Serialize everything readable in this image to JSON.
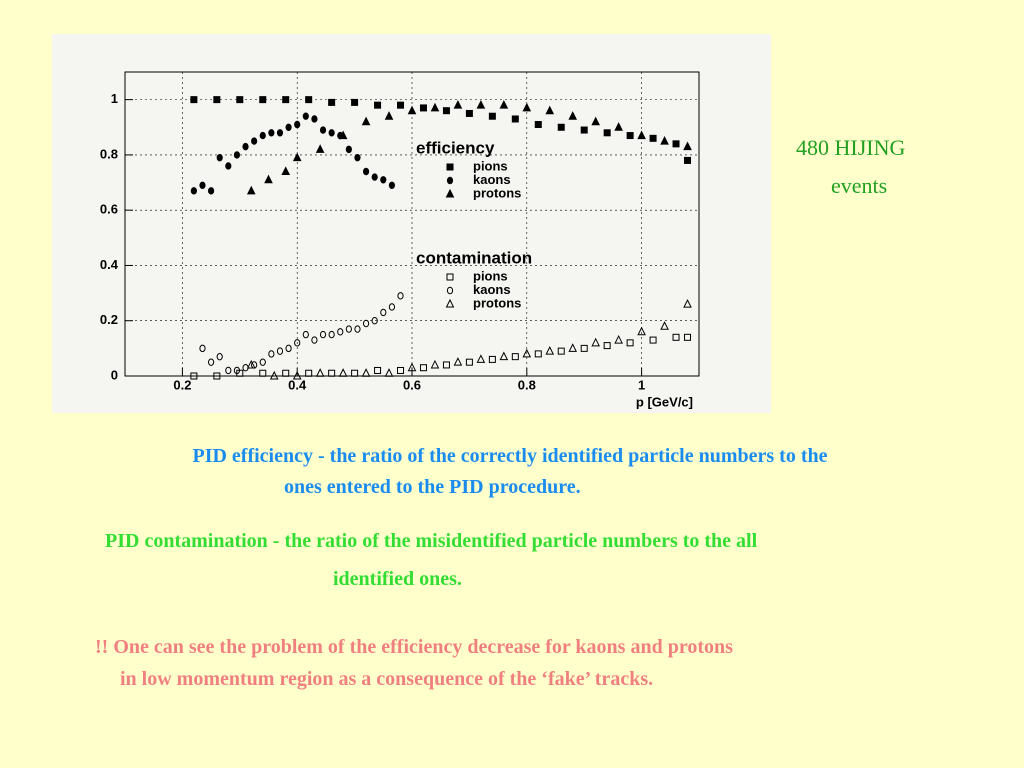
{
  "chart_data": {
    "type": "scatter",
    "x_label": "p [GeV/c]",
    "xlim": [
      0.1,
      1.1
    ],
    "xticks": [
      0.2,
      0.4,
      0.6,
      0.8,
      1
    ],
    "ylim": [
      0,
      1.1
    ],
    "yticks": [
      0,
      0.2,
      0.4,
      0.6,
      0.8,
      1
    ],
    "grid": true,
    "legend_titles": [
      "efficiency",
      "contamination"
    ],
    "series": [
      {
        "name": "pions",
        "group": 0,
        "marker": "square",
        "filled": true,
        "color": "#000000",
        "x": [
          0.22,
          0.26,
          0.3,
          0.34,
          0.38,
          0.42,
          0.46,
          0.5,
          0.54,
          0.58,
          0.62,
          0.66,
          0.7,
          0.74,
          0.78,
          0.82,
          0.86,
          0.9,
          0.94,
          0.98,
          1.02,
          1.06,
          1.08
        ],
        "values": [
          1,
          1,
          1,
          1,
          1,
          1,
          0.99,
          0.99,
          0.98,
          0.98,
          0.97,
          0.96,
          0.95,
          0.94,
          0.93,
          0.91,
          0.9,
          0.89,
          0.88,
          0.87,
          0.86,
          0.84,
          0.78
        ]
      },
      {
        "name": "kaons",
        "group": 0,
        "marker": "circle",
        "filled": true,
        "color": "#000000",
        "x": [
          0.22,
          0.235,
          0.25,
          0.265,
          0.28,
          0.295,
          0.31,
          0.325,
          0.34,
          0.355,
          0.37,
          0.385,
          0.4,
          0.415,
          0.43,
          0.445,
          0.46,
          0.475,
          0.49,
          0.505,
          0.52,
          0.535,
          0.55,
          0.565
        ],
        "values": [
          0.67,
          0.69,
          0.67,
          0.79,
          0.76,
          0.8,
          0.83,
          0.85,
          0.87,
          0.88,
          0.88,
          0.9,
          0.91,
          0.94,
          0.93,
          0.89,
          0.88,
          0.87,
          0.82,
          0.79,
          0.74,
          0.72,
          0.71,
          0.69
        ]
      },
      {
        "name": "protons",
        "group": 0,
        "marker": "triangle",
        "filled": true,
        "color": "#000000",
        "x": [
          0.32,
          0.35,
          0.38,
          0.4,
          0.44,
          0.48,
          0.52,
          0.56,
          0.6,
          0.64,
          0.68,
          0.72,
          0.76,
          0.8,
          0.84,
          0.88,
          0.92,
          0.96,
          1.0,
          1.04,
          1.08
        ],
        "values": [
          0.67,
          0.71,
          0.74,
          0.79,
          0.82,
          0.87,
          0.92,
          0.94,
          0.96,
          0.97,
          0.98,
          0.98,
          0.98,
          0.97,
          0.96,
          0.94,
          0.92,
          0.9,
          0.87,
          0.85,
          0.83
        ]
      },
      {
        "name": "pions",
        "group": 1,
        "marker": "square",
        "filled": false,
        "color": "#000000",
        "x": [
          0.22,
          0.26,
          0.3,
          0.34,
          0.38,
          0.42,
          0.46,
          0.5,
          0.54,
          0.58,
          0.62,
          0.66,
          0.7,
          0.74,
          0.78,
          0.82,
          0.86,
          0.9,
          0.94,
          0.98,
          1.02,
          1.06,
          1.08
        ],
        "values": [
          0,
          0,
          0.01,
          0.01,
          0.01,
          0.01,
          0.01,
          0.01,
          0.02,
          0.02,
          0.03,
          0.04,
          0.05,
          0.06,
          0.07,
          0.08,
          0.09,
          0.1,
          0.11,
          0.12,
          0.13,
          0.14,
          0.14
        ]
      },
      {
        "name": "kaons",
        "group": 1,
        "marker": "circle",
        "filled": false,
        "color": "#000000",
        "x": [
          0.235,
          0.25,
          0.265,
          0.28,
          0.295,
          0.31,
          0.325,
          0.34,
          0.355,
          0.37,
          0.385,
          0.4,
          0.415,
          0.43,
          0.445,
          0.46,
          0.475,
          0.49,
          0.505,
          0.52,
          0.535,
          0.55,
          0.565,
          0.58
        ],
        "values": [
          0.1,
          0.05,
          0.07,
          0.02,
          0.02,
          0.03,
          0.04,
          0.05,
          0.08,
          0.09,
          0.1,
          0.12,
          0.15,
          0.13,
          0.15,
          0.15,
          0.16,
          0.17,
          0.17,
          0.19,
          0.2,
          0.23,
          0.25,
          0.29
        ]
      },
      {
        "name": "protons",
        "group": 1,
        "marker": "triangle",
        "filled": false,
        "color": "#000000",
        "x": [
          0.32,
          0.36,
          0.4,
          0.44,
          0.48,
          0.52,
          0.56,
          0.6,
          0.64,
          0.68,
          0.72,
          0.76,
          0.8,
          0.84,
          0.88,
          0.92,
          0.96,
          1.0,
          1.04,
          1.08
        ],
        "values": [
          0.04,
          0,
          0,
          0.01,
          0.01,
          0.01,
          0.01,
          0.03,
          0.04,
          0.05,
          0.06,
          0.07,
          0.08,
          0.09,
          0.1,
          0.12,
          0.13,
          0.16,
          0.18,
          0.26
        ]
      }
    ]
  },
  "slide": {
    "annotation": [
      "480 HIJING",
      "events"
    ],
    "notes": [
      [
        "PID efficiency - the ratio of the correctly identified particle numbers to the",
        "ones entered to the PID procedure."
      ],
      [
        "PID contamination - the ratio of the misidentified particle numbers to the all",
        "identified ones."
      ],
      [
        "!! One can see the problem of the efficiency decrease for kaons and protons",
        "in low momentum region as a consequence of the ‘fake’ tracks."
      ]
    ]
  }
}
